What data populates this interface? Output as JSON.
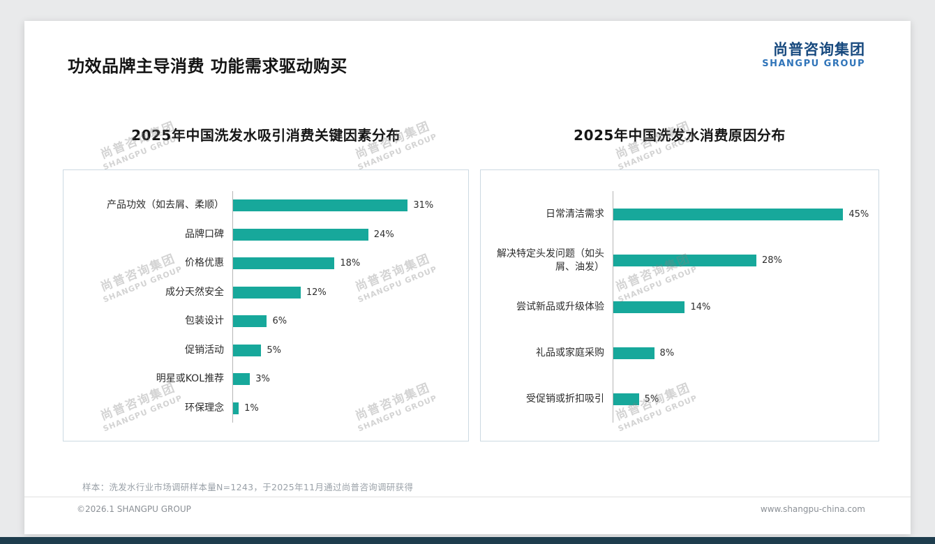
{
  "page": {
    "title": "功效品牌主导消费 功能需求驱动购买",
    "logo": {
      "cn": "尚普咨询集团",
      "en": "SHANGPU GROUP"
    },
    "watermark": {
      "cn": "尚普咨询集团",
      "en": "SHANGPU GROUP"
    },
    "footnote": "样本：洗发水行业市场调研样本量N=1243，于2025年11月通过尚普咨询调研获得",
    "footer": {
      "left": "©2026.1 SHANGPU GROUP",
      "right": "www.shangpu-china.com"
    }
  },
  "colors": {
    "bar_teal": "#17A89B",
    "logo_navy": "#17497e",
    "logo_blue": "#2f74b9",
    "bottom_band": "#1e3d4d"
  },
  "chart_data": [
    {
      "type": "bar",
      "orientation": "horizontal",
      "title": "2025年中国洗发水吸引消费关键因素分布",
      "categories": [
        "产品功效（如去屑、柔顺）",
        "品牌口碑",
        "价格优惠",
        "成分天然安全",
        "包装设计",
        "促销活动",
        "明星或KOL推荐",
        "环保理念"
      ],
      "values": [
        31,
        24,
        18,
        12,
        6,
        5,
        3,
        1
      ],
      "unit": "%",
      "bar_color": "#17A89B",
      "xlim": [
        0,
        40
      ],
      "grid": false,
      "legend": false
    },
    {
      "type": "bar",
      "orientation": "horizontal",
      "title": "2025年中国洗发水消费原因分布",
      "categories": [
        "日常清洁需求",
        "解决特定头发问题（如头屑、油发）",
        "尝试新品或升级体验",
        "礼品或家庭采购",
        "受促销或折扣吸引"
      ],
      "values": [
        45,
        28,
        14,
        8,
        5
      ],
      "unit": "%",
      "bar_color": "#17A89B",
      "xlim": [
        0,
        50
      ],
      "grid": false,
      "legend": false
    }
  ]
}
